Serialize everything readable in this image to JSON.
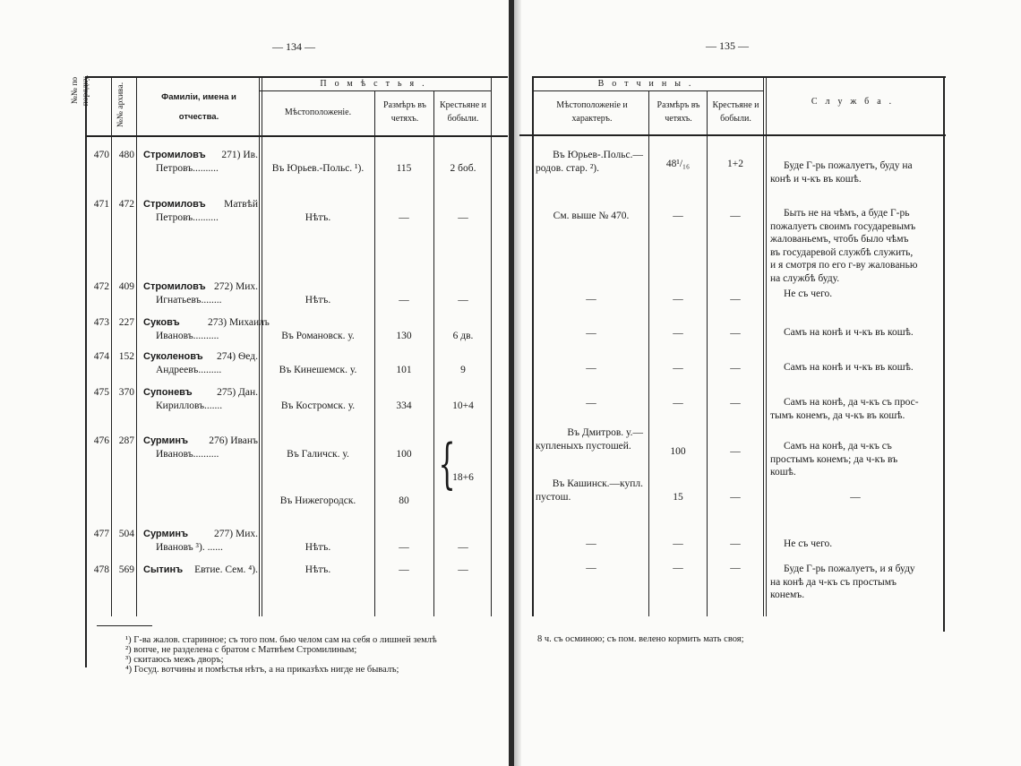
{
  "left_page": {
    "page_number": "— 134 —",
    "headers": {
      "order_no": "№№ по порядку.",
      "archive_no": "№№ архива.",
      "names": "Фамиліи, имена и отчества.",
      "estates_group": "Помѣстья.",
      "location": "Мѣстоположеніе.",
      "size": "Размѣръ въ четяхъ.",
      "peasants": "Крестьяне и бобыли."
    },
    "rows": [
      {
        "num": "470",
        "arch": "480",
        "surname": "Стромиловъ",
        "rest": "271) Ив.",
        "line2": "Петровъ..........",
        "locations": [
          "Въ Юрьев.-Польс. ¹)."
        ],
        "sizes": [
          "115"
        ],
        "peasants": "2 боб."
      },
      {
        "num": "471",
        "arch": "472",
        "surname": "Стромиловъ",
        "rest": "Матвѣй",
        "line2": "Петровъ..........",
        "locations": [
          "Нѣтъ."
        ],
        "sizes": [
          "—"
        ],
        "peasants": "—"
      },
      {
        "num": "472",
        "arch": "409",
        "surname": "Стромиловъ",
        "rest": "272) Мих.",
        "line2": "Игнатьевъ........",
        "locations": [
          "Нѣтъ."
        ],
        "sizes": [
          "—"
        ],
        "peasants": "—"
      },
      {
        "num": "473",
        "arch": "227",
        "surname": "Суковъ",
        "rest": "273) Михаилъ",
        "line2": "Ивановъ..........",
        "locations": [
          "Въ Романовск. у."
        ],
        "sizes": [
          "130"
        ],
        "peasants": "6 дв."
      },
      {
        "num": "474",
        "arch": "152",
        "surname": "Суколеновъ",
        "rest": "274) Ѳед.",
        "line2": "Андреевъ.........",
        "locations": [
          "Въ Кинешемск. у."
        ],
        "sizes": [
          "101"
        ],
        "peasants": "9"
      },
      {
        "num": "475",
        "arch": "370",
        "surname": "Супоневъ",
        "rest": "275) Дан.",
        "line2": "Кирилловъ.......",
        "locations": [
          "Въ Костромск. у."
        ],
        "sizes": [
          "334"
        ],
        "peasants": "10+4"
      },
      {
        "num": "476",
        "arch": "287",
        "surname": "Сурминъ",
        "rest": "276) Иванъ",
        "line2": "Ивановъ..........",
        "locations": [
          "Въ Галичск. у.",
          "Въ Нижегородск."
        ],
        "sizes": [
          "100",
          "80"
        ],
        "peasants": "18+6"
      },
      {
        "num": "477",
        "arch": "504",
        "surname": "Сурминъ",
        "rest": "277) Мих.",
        "line2": "Ивановъ ³). ......",
        "locations": [
          "Нѣтъ."
        ],
        "sizes": [
          "—"
        ],
        "peasants": "—"
      },
      {
        "num": "478",
        "arch": "569",
        "surname": "Сытинъ",
        "rest": "Евтие. Сем. ⁴).",
        "line2": "",
        "locations": [
          "Нѣтъ."
        ],
        "sizes": [
          "—"
        ],
        "peasants": "—"
      }
    ],
    "footnotes": [
      "¹) Г-ва жалов. старинное; съ того пом. бью челом сам на себя о лишней землѣ",
      "²) вопче, не разделена с братом с Матвѣем Стромилиным;",
      "³) скитаюсь межъ дворъ;",
      "⁴) Госуд. вотчины и помѣстья нѣтъ, а на приказѣхъ нигде не бывалъ;"
    ]
  },
  "right_page": {
    "page_number": "— 135 —",
    "headers": {
      "patrimony_group": "Вотчины.",
      "location": "Мѣстоположеніе и характеръ.",
      "size": "Размѣръ въ четяхъ.",
      "peasants": "Крестьяне и бобыли.",
      "service": "Служба."
    },
    "rows": [
      {
        "location": [
          "Въ Юрьев-.Польс.—",
          "родов. стар. ²)."
        ],
        "size": "48¹/₁₆",
        "peasants": "1+2",
        "service": [
          "Буде Г-рь пожалуетъ, буду на",
          "конѣ и ч-къ въ кошѣ."
        ]
      },
      {
        "location": [
          "См. выше № 470."
        ],
        "size": "—",
        "peasants": "—",
        "service": [
          "Быть не на чѣмъ, а буде Г-рь",
          "пожалуетъ своимъ государевымъ",
          "жалованьемъ, чтобъ было чѣмъ",
          "въ государевой службѣ служить,",
          "и я смотря по его г-ву жалованью",
          "на службѣ буду."
        ]
      },
      {
        "location": [
          "—"
        ],
        "size": "—",
        "peasants": "—",
        "service": [
          "Не съ чего."
        ]
      },
      {
        "location": [
          "—"
        ],
        "size": "—",
        "peasants": "—",
        "service": [
          "Самъ на конѣ и ч-къ въ кошѣ."
        ]
      },
      {
        "location": [
          "—"
        ],
        "size": "—",
        "peasants": "—",
        "service": [
          "Самъ на конѣ и ч-къ въ кошѣ."
        ]
      },
      {
        "location": [
          "—"
        ],
        "size": "—",
        "peasants": "—",
        "service": [
          "Самъ на конѣ, да ч-къ съ прос-",
          "тымъ конемъ, да ч-къ въ кошѣ."
        ]
      },
      {
        "location": [
          "Въ Дмитров. у.—",
          "купленыхъ пустошей."
        ],
        "size": "100",
        "peasants": "—",
        "service": [
          "Самъ на конѣ, да ч-къ съ",
          "простымъ конемъ; да ч-къ въ",
          "кошѣ."
        ]
      },
      {
        "location": [
          "Въ Кашинск.—купл.",
          "пустош."
        ],
        "size": "15",
        "peasants": "—",
        "service": [
          "—"
        ]
      },
      {
        "location": [
          "—"
        ],
        "size": "—",
        "peasants": "—",
        "service": [
          "Не съ чего."
        ]
      },
      {
        "location": [
          "—"
        ],
        "size": "—",
        "peasants": "—",
        "service": [
          "Буде Г-рь пожалуетъ, и я буду",
          "на конѣ да ч-къ съ простымъ",
          "конемъ."
        ]
      }
    ],
    "footnote": "8 ч. съ осминою; съ пом. велено кормить мать своя;"
  }
}
